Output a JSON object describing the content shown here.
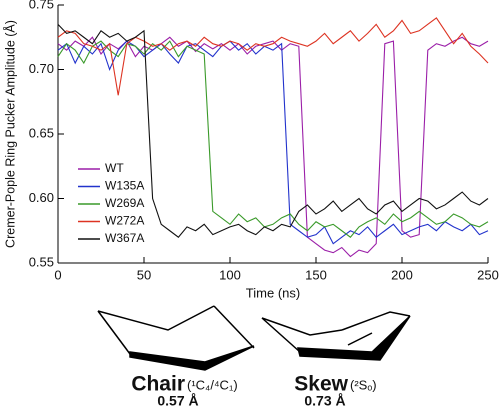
{
  "chart_data": {
    "type": "line",
    "x_label": "Time (ns)",
    "y_label": "Cremer-Pople Ring Pucker Amplitude (Å)",
    "x": [
      0,
      5,
      10,
      15,
      20,
      25,
      30,
      35,
      40,
      45,
      50,
      55,
      60,
      65,
      70,
      75,
      80,
      85,
      90,
      95,
      100,
      105,
      110,
      115,
      120,
      125,
      130,
      135,
      140,
      145,
      150,
      155,
      160,
      165,
      170,
      175,
      180,
      185,
      190,
      195,
      200,
      205,
      210,
      215,
      220,
      225,
      230,
      235,
      240,
      245,
      250
    ],
    "series": [
      {
        "name": "WT",
        "color": "#9b1fa8",
        "values": [
          0.72,
          0.715,
          0.722,
          0.718,
          0.725,
          0.712,
          0.72,
          0.716,
          0.722,
          0.71,
          0.718,
          0.715,
          0.72,
          0.725,
          0.718,
          0.722,
          0.714,
          0.72,
          0.716,
          0.72,
          0.715,
          0.72,
          0.712,
          0.718,
          0.72,
          0.722,
          0.715,
          0.72,
          0.718,
          0.57,
          0.565,
          0.56,
          0.558,
          0.562,
          0.555,
          0.56,
          0.558,
          0.565,
          0.72,
          0.722,
          0.575,
          0.57,
          0.572,
          0.715,
          0.72,
          0.718,
          0.722,
          0.725,
          0.72,
          0.718,
          0.722
        ]
      },
      {
        "name": "W135A",
        "color": "#2233cc",
        "values": [
          0.715,
          0.72,
          0.705,
          0.718,
          0.712,
          0.72,
          0.7,
          0.715,
          0.722,
          0.718,
          0.71,
          0.715,
          0.72,
          0.712,
          0.705,
          0.718,
          0.72,
          0.715,
          0.71,
          0.718,
          0.722,
          0.715,
          0.72,
          0.712,
          0.718,
          0.715,
          0.72,
          0.58,
          0.575,
          0.57,
          0.572,
          0.578,
          0.565,
          0.57,
          0.575,
          0.572,
          0.578,
          0.57,
          0.575,
          0.58,
          0.572,
          0.575,
          0.578,
          0.58,
          0.575,
          0.582,
          0.578,
          0.575,
          0.58,
          0.572,
          0.575
        ]
      },
      {
        "name": "W269A",
        "color": "#3a9a2a",
        "values": [
          0.71,
          0.72,
          0.715,
          0.705,
          0.718,
          0.722,
          0.715,
          0.71,
          0.72,
          0.718,
          0.712,
          0.72,
          0.715,
          0.722,
          0.71,
          0.718,
          0.715,
          0.712,
          0.59,
          0.585,
          0.58,
          0.588,
          0.582,
          0.585,
          0.578,
          0.58,
          0.585,
          0.588,
          0.58,
          0.575,
          0.582,
          0.578,
          0.58,
          0.575,
          0.57,
          0.578,
          0.582,
          0.585,
          0.58,
          0.588,
          0.582,
          0.585,
          0.59,
          0.585,
          0.58,
          0.582,
          0.588,
          0.585,
          0.58,
          0.578,
          0.582
        ]
      },
      {
        "name": "W272A",
        "color": "#dd3322",
        "values": [
          0.725,
          0.73,
          0.728,
          0.72,
          0.718,
          0.715,
          0.72,
          0.68,
          0.72,
          0.725,
          0.722,
          0.718,
          0.72,
          0.715,
          0.72,
          0.722,
          0.718,
          0.725,
          0.72,
          0.718,
          0.722,
          0.72,
          0.715,
          0.72,
          0.718,
          0.72,
          0.725,
          0.722,
          0.72,
          0.718,
          0.722,
          0.728,
          0.72,
          0.725,
          0.73,
          0.722,
          0.728,
          0.735,
          0.725,
          0.73,
          0.738,
          0.728,
          0.73,
          0.735,
          0.74,
          0.73,
          0.72,
          0.728,
          0.718,
          0.712,
          0.705
        ]
      },
      {
        "name": "W367A",
        "color": "#111111",
        "values": [
          0.735,
          0.728,
          0.73,
          0.725,
          0.72,
          0.73,
          0.725,
          0.728,
          0.722,
          0.725,
          0.73,
          0.6,
          0.58,
          0.575,
          0.57,
          0.578,
          0.575,
          0.58,
          0.572,
          0.575,
          0.578,
          0.58,
          0.575,
          0.572,
          0.578,
          0.575,
          0.58,
          0.578,
          0.59,
          0.595,
          0.588,
          0.592,
          0.598,
          0.59,
          0.595,
          0.6,
          0.592,
          0.588,
          0.595,
          0.598,
          0.59,
          0.595,
          0.6,
          0.598,
          0.592,
          0.595,
          0.6,
          0.605,
          0.598,
          0.595,
          0.6
        ]
      }
    ],
    "xlim": [
      0,
      250
    ],
    "xticks": [
      0,
      50,
      100,
      150,
      200,
      250
    ],
    "ylim": [
      0.55,
      0.75
    ],
    "yticks": [
      0.55,
      {
        "value": 0.6,
        "label": "0.60"
      },
      0.65,
      {
        "value": 0.7,
        "label": "0.70"
      },
      0.75
    ],
    "grid": false,
    "legend": "left"
  },
  "structures": [
    {
      "name": "Chair",
      "notation": "(¹C₄/⁴C₁)",
      "amplitude": "0.57 Å"
    },
    {
      "name": "Skew",
      "notation": "(²Sₒ)",
      "amplitude": "0.73 Å"
    }
  ]
}
